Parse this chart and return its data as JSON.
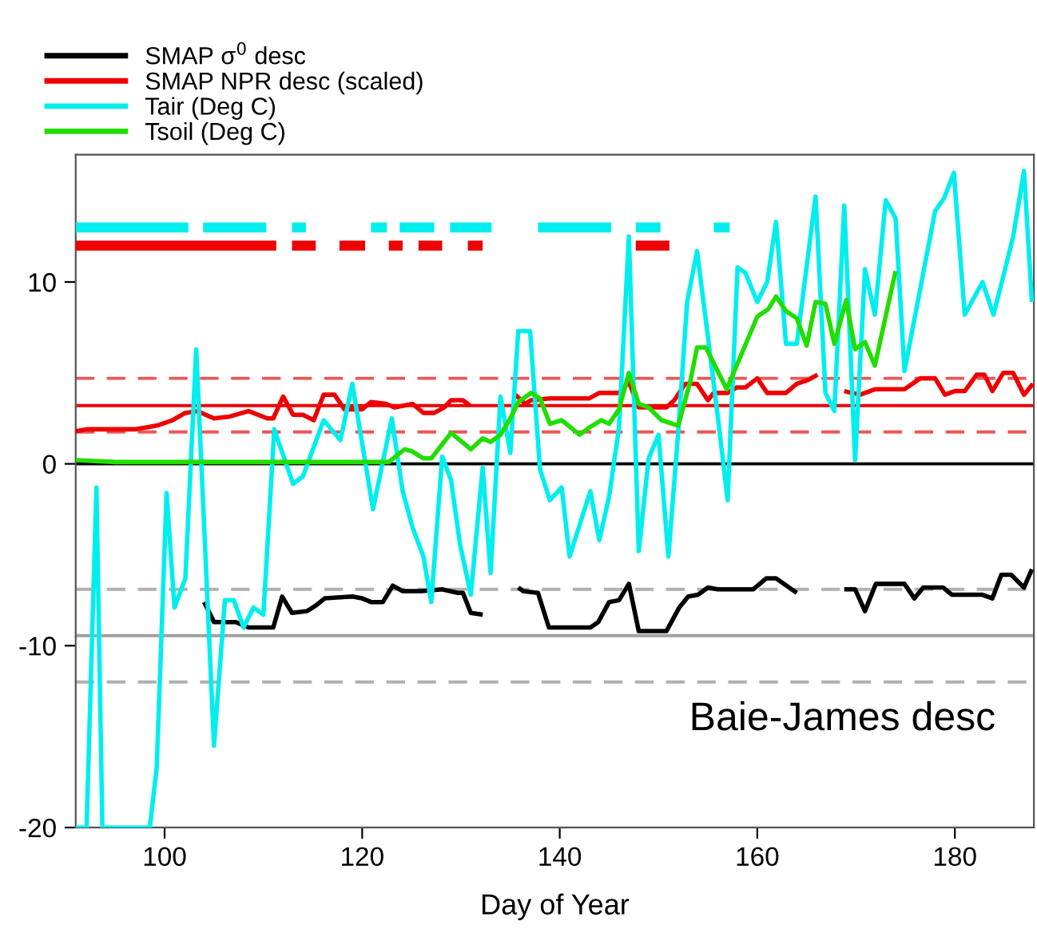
{
  "chart_data": {
    "type": "line",
    "xlabel": "Day of Year",
    "xlim": [
      91,
      188
    ],
    "ylim": [
      -20,
      17
    ],
    "xticks": [
      100,
      120,
      140,
      160,
      180
    ],
    "yticks": [
      -20,
      -10,
      0,
      10
    ],
    "grid": false,
    "legend": "top left",
    "marker": "none",
    "line_style": "solid",
    "series": [
      {
        "name": "SMAP σ$^{0}$ desc",
        "color": "#000000",
        "x": [
          104,
          105,
          106,
          107.2,
          108.5,
          111,
          111.9,
          112.9,
          114.4,
          115.3,
          116.2,
          119,
          120,
          120.9,
          122.1,
          123.1,
          124.1,
          126,
          128.1,
          129.7,
          130.2,
          131,
          132.2,
          134,
          135.8,
          136.3,
          137.8,
          138.9,
          143.1,
          143.9,
          145,
          146,
          147,
          148,
          150.8,
          152.1,
          153,
          154,
          155,
          156,
          159.6,
          160.9,
          161.9,
          164,
          166,
          168.8,
          169.9,
          170.9,
          172,
          174.9,
          175.9,
          176.8,
          178.8,
          179.7,
          182.8,
          183.8,
          184.7,
          185.7,
          187,
          187.8
        ],
        "values": [
          -7.6,
          -8.7,
          -8.7,
          -8.7,
          -9,
          -9,
          -7.3,
          -8.2,
          -8.1,
          -7.8,
          -7.4,
          -7.3,
          -7.4,
          -7.6,
          -7.6,
          -6.7,
          -7,
          -7,
          -6.9,
          -7.1,
          -7.1,
          -8.2,
          -8.3,
          null,
          -6.8,
          -7,
          -7.1,
          -9,
          -9,
          -8.7,
          -7.6,
          -7.5,
          -6.6,
          -9.2,
          -9.2,
          -7.9,
          -7.3,
          -7.2,
          -6.8,
          -6.9,
          -6.9,
          -6.3,
          -6.3,
          -7.1,
          null,
          -6.9,
          -6.9,
          -8.1,
          -6.6,
          -6.6,
          -7.4,
          -6.8,
          -6.8,
          -7.2,
          -7.2,
          -7.4,
          -6.1,
          -6.1,
          -6.8,
          -5.8
        ]
      },
      {
        "name": "SMAP NPR desc (scaled)",
        "color": "#ee0000",
        "x": [
          91,
          92.1,
          97,
          99.2,
          100.8,
          102.1,
          103.3,
          105,
          106.6,
          108.5,
          110.4,
          111,
          112,
          113,
          114,
          115.1,
          116.1,
          117.2,
          118.2,
          120,
          120.9,
          122.4,
          123.3,
          125.1,
          126.2,
          127.3,
          128.3,
          129,
          130.2,
          130.9,
          133,
          135.5,
          136.5,
          137.1,
          139,
          143,
          144,
          146,
          147,
          148,
          150.8,
          151.6,
          152.7,
          153.9,
          155,
          155.6,
          157,
          157.9,
          158.8,
          160,
          161,
          162.9,
          164,
          165.1,
          166.1,
          167.5,
          168.8,
          170.4,
          171.9,
          174.9,
          176.5,
          178,
          179,
          180,
          181,
          182.2,
          183,
          183.8,
          184.9,
          185.9,
          187,
          187.9
        ],
        "values": [
          1.8,
          1.9,
          1.9,
          2.1,
          2.4,
          2.8,
          2.9,
          2.5,
          2.6,
          2.9,
          2.5,
          2.5,
          3.7,
          2.7,
          2.7,
          2.4,
          3.8,
          3.8,
          3.0,
          3.0,
          3.4,
          3.3,
          3.1,
          3.3,
          2.8,
          2.8,
          3.1,
          3.5,
          3.5,
          3.2,
          null,
          3.8,
          3.3,
          3.5,
          3.6,
          3.6,
          3.9,
          3.9,
          4.5,
          3.1,
          3.1,
          3.5,
          4.4,
          4.4,
          3.5,
          3.9,
          3.9,
          4.2,
          4.2,
          4.7,
          3.9,
          3.9,
          4.4,
          4.6,
          4.9,
          null,
          4.0,
          3.8,
          4.1,
          4.1,
          4.7,
          4.7,
          3.8,
          4.0,
          4.0,
          4.9,
          4.9,
          4.0,
          5.0,
          5.0,
          3.8,
          4.4
        ]
      },
      {
        "name": "Tair (Deg C)",
        "color": "#00eeee",
        "x": [
          91,
          92.1,
          93.1,
          93.7,
          98.5,
          99.2,
          100.2,
          101,
          102.1,
          103.2,
          105,
          106.1,
          107,
          108,
          109,
          110,
          111.1,
          113,
          114,
          116.1,
          117.8,
          119,
          121.1,
          123,
          124.1,
          125.1,
          126.2,
          127,
          128.1,
          129,
          129.9,
          131,
          132.2,
          133,
          134,
          135,
          135.8,
          137,
          138,
          139,
          140.2,
          141,
          143.1,
          144,
          145,
          146,
          147,
          148,
          149,
          150,
          151,
          152,
          152.9,
          153.9,
          155,
          156,
          157,
          158,
          158.8,
          160,
          161,
          161.9,
          162.9,
          164,
          165.9,
          166.9,
          167.8,
          168.8,
          169.9,
          170.9,
          171.9,
          173,
          174,
          174.9,
          178,
          178.9,
          179.9,
          181,
          182.8,
          183.9,
          184.9,
          185.9,
          187,
          187.8
        ],
        "values": [
          -20,
          -20,
          -1.3,
          -20,
          -20,
          -16.7,
          -1.6,
          -7.9,
          -6.3,
          6.3,
          -15.5,
          -7.5,
          -7.5,
          -9,
          -7.9,
          -8.3,
          1.9,
          -1.1,
          -0.7,
          2.4,
          1.3,
          4.4,
          -2.5,
          2.5,
          -1.5,
          -3.5,
          -5.1,
          -7.6,
          0.4,
          -0.9,
          -4.4,
          -7.2,
          -0.2,
          -6,
          3.7,
          0.6,
          7.3,
          7.3,
          -0.3,
          -2,
          -1.3,
          -5.1,
          -1.5,
          -4.2,
          -1.8,
          2,
          12.5,
          -4.8,
          0.3,
          1.6,
          -5.1,
          1.8,
          8.9,
          11.7,
          7,
          2.6,
          -2,
          10.8,
          10.5,
          8.9,
          10,
          13.3,
          6.6,
          6.6,
          14.7,
          3.9,
          2.9,
          14.2,
          0.2,
          10.7,
          8.2,
          14.5,
          13.5,
          5.1,
          13.9,
          14.6,
          16,
          8.2,
          10,
          8.2,
          10.3,
          12.5,
          16.1,
          8.9
        ]
      },
      {
        "name": "Tsoil (Deg C)",
        "color": "#22dd00",
        "x": [
          91,
          95,
          100,
          105,
          110,
          115,
          120,
          122.7,
          124.3,
          125,
          126.2,
          127,
          129,
          131,
          132.2,
          133,
          134,
          135,
          135.8,
          137.1,
          138,
          139,
          140.2,
          142,
          143,
          144.2,
          145,
          146,
          147,
          148,
          149,
          150.3,
          152,
          153.2,
          153.9,
          154.8,
          156.9,
          160,
          161.1,
          161.9,
          162.9,
          164,
          165,
          165.9,
          166.9,
          167.8,
          169,
          169.9,
          170.9,
          171.9,
          174
        ],
        "values": [
          0.2,
          0.1,
          0.1,
          0.1,
          0.1,
          0.1,
          0.1,
          0.1,
          0.8,
          0.7,
          0.3,
          0.3,
          1.7,
          0.8,
          1.4,
          1.2,
          1.6,
          2.5,
          3.4,
          3.9,
          3.6,
          2.2,
          2.4,
          1.6,
          2,
          2.4,
          2.2,
          3,
          5,
          3.3,
          3.1,
          2.4,
          2.1,
          4.5,
          6.4,
          6.4,
          4.1,
          8.1,
          8.5,
          9.2,
          8.4,
          8,
          6.5,
          8.9,
          8.8,
          6.6,
          9,
          6.3,
          6.7,
          5.4,
          10.6
        ]
      },
      {
        "color": "#00eeee",
        "x": [
          91,
          102.4,
          103,
          103.9,
          110.3,
          111,
          112.9,
          114.3,
          117,
          120.9,
          122.5,
          123,
          123.8,
          127.3,
          128,
          128.9,
          133.1,
          135,
          137.8,
          145.2,
          146,
          147.7,
          150.2,
          152,
          155.6,
          157.2
        ],
        "values": [
          13,
          13,
          null,
          13,
          13,
          null,
          13,
          13,
          null,
          13,
          13,
          null,
          13,
          13,
          null,
          13,
          13,
          null,
          13,
          13,
          null,
          13,
          13,
          null,
          13,
          13
        ]
      },
      {
        "color": "#ee0000",
        "x": [
          91,
          111.3,
          112,
          112.9,
          115.3,
          116,
          117.7,
          120.3,
          121,
          122.7,
          124.1,
          125,
          125.7,
          128.1,
          129,
          130.7,
          132.2,
          140,
          147.7,
          151.1
        ],
        "values": [
          12,
          12,
          null,
          12,
          12,
          null,
          12,
          12,
          null,
          12,
          12,
          null,
          12,
          12,
          null,
          12,
          12,
          null,
          12,
          12
        ]
      }
    ],
    "ref_lines": [
      {
        "axis": "y",
        "value": 0,
        "color": "#000000",
        "line_style": "solid"
      },
      {
        "axis": "y",
        "value": 3.2,
        "color": "#ee0000",
        "line_style": "solid"
      },
      {
        "axis": "y",
        "value": 4.7,
        "color": "#ee5555",
        "line_style": "dashed"
      },
      {
        "axis": "y",
        "value": 1.75,
        "color": "#ee5555",
        "line_style": "dashed"
      },
      {
        "axis": "y",
        "value": -9.45,
        "color": "#a0a0a0",
        "line_style": "solid"
      },
      {
        "axis": "y",
        "value": -6.9,
        "color": "#b0b0b0",
        "line_style": "dashed"
      },
      {
        "axis": "y",
        "value": -12.0,
        "color": "#b0b0b0",
        "line_style": "dashed"
      }
    ],
    "annotations": [
      "Baie-James desc"
    ]
  }
}
